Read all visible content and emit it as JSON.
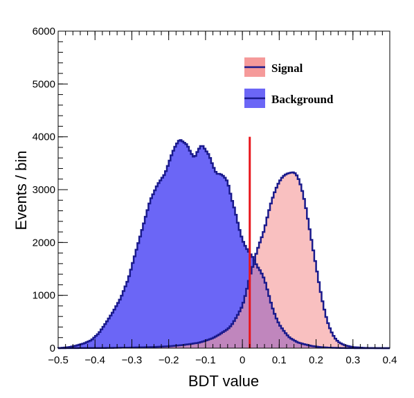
{
  "chart_data": {
    "type": "histogram",
    "xlabel": "BDT value",
    "ylabel": "Events / bin",
    "xlim": [
      -0.5,
      0.4
    ],
    "ylim": [
      0,
      6000
    ],
    "x_ticks": [
      -0.5,
      -0.4,
      -0.3,
      -0.2,
      -0.1,
      0,
      0.1,
      0.2,
      0.3,
      0.4
    ],
    "x_tick_labels": [
      "−0.5",
      "−0.4",
      "−0.3",
      "−0.2",
      "−0.1",
      "0",
      "0.1",
      "0.2",
      "0.3",
      "0.4"
    ],
    "y_ticks": [
      0,
      1000,
      2000,
      3000,
      4000,
      5000,
      6000
    ],
    "y_tick_labels": [
      "0",
      "1000",
      "2000",
      "3000",
      "4000",
      "5000",
      "6000"
    ],
    "grid": false,
    "legend_position": "top-right",
    "cut_line": {
      "x": 0.02,
      "y_max": 4000,
      "color": "#e8141a"
    },
    "series": [
      {
        "name": "Background",
        "fill": "#6b66f6",
        "line": "#1a1a8c",
        "points": [
          [
            -0.5,
            0
          ],
          [
            -0.47,
            20
          ],
          [
            -0.45,
            50
          ],
          [
            -0.43,
            90
          ],
          [
            -0.41,
            150
          ],
          [
            -0.39,
            280
          ],
          [
            -0.37,
            480
          ],
          [
            -0.35,
            700
          ],
          [
            -0.33,
            950
          ],
          [
            -0.31,
            1300
          ],
          [
            -0.29,
            1800
          ],
          [
            -0.27,
            2300
          ],
          [
            -0.25,
            2800
          ],
          [
            -0.23,
            3100
          ],
          [
            -0.21,
            3300
          ],
          [
            -0.2,
            3500
          ],
          [
            -0.19,
            3700
          ],
          [
            -0.18,
            3850
          ],
          [
            -0.17,
            3950
          ],
          [
            -0.16,
            3900
          ],
          [
            -0.15,
            3850
          ],
          [
            -0.14,
            3700
          ],
          [
            -0.13,
            3600
          ],
          [
            -0.12,
            3750
          ],
          [
            -0.11,
            3850
          ],
          [
            -0.1,
            3750
          ],
          [
            -0.09,
            3650
          ],
          [
            -0.08,
            3450
          ],
          [
            -0.07,
            3300
          ],
          [
            -0.06,
            3300
          ],
          [
            -0.05,
            3250
          ],
          [
            -0.04,
            3150
          ],
          [
            -0.03,
            2850
          ],
          [
            -0.02,
            2600
          ],
          [
            -0.01,
            2300
          ],
          [
            0.0,
            2050
          ],
          [
            0.01,
            1900
          ],
          [
            0.02,
            1800
          ],
          [
            0.03,
            1700
          ],
          [
            0.04,
            1550
          ],
          [
            0.05,
            1450
          ],
          [
            0.06,
            1300
          ],
          [
            0.07,
            1050
          ],
          [
            0.08,
            800
          ],
          [
            0.09,
            600
          ],
          [
            0.1,
            450
          ],
          [
            0.11,
            350
          ],
          [
            0.12,
            260
          ],
          [
            0.13,
            190
          ],
          [
            0.14,
            150
          ],
          [
            0.15,
            110
          ],
          [
            0.17,
            70
          ],
          [
            0.19,
            40
          ],
          [
            0.21,
            20
          ],
          [
            0.24,
            8
          ],
          [
            0.28,
            2
          ],
          [
            0.32,
            0
          ]
        ]
      },
      {
        "name": "Signal",
        "fill": "#f59a9a",
        "line": "#1a1a8c",
        "points": [
          [
            -0.5,
            0
          ],
          [
            -0.36,
            5
          ],
          [
            -0.3,
            12
          ],
          [
            -0.24,
            22
          ],
          [
            -0.2,
            35
          ],
          [
            -0.16,
            60
          ],
          [
            -0.12,
            100
          ],
          [
            -0.1,
            140
          ],
          [
            -0.08,
            190
          ],
          [
            -0.06,
            270
          ],
          [
            -0.04,
            360
          ],
          [
            -0.03,
            430
          ],
          [
            -0.02,
            540
          ],
          [
            -0.01,
            660
          ],
          [
            0.0,
            800
          ],
          [
            0.01,
            1050
          ],
          [
            0.02,
            1350
          ],
          [
            0.03,
            1600
          ],
          [
            0.04,
            1850
          ],
          [
            0.05,
            2050
          ],
          [
            0.06,
            2250
          ],
          [
            0.07,
            2550
          ],
          [
            0.08,
            2800
          ],
          [
            0.09,
            3000
          ],
          [
            0.1,
            3150
          ],
          [
            0.11,
            3250
          ],
          [
            0.12,
            3300
          ],
          [
            0.13,
            3320
          ],
          [
            0.14,
            3330
          ],
          [
            0.15,
            3250
          ],
          [
            0.16,
            3050
          ],
          [
            0.17,
            2750
          ],
          [
            0.18,
            2350
          ],
          [
            0.19,
            1950
          ],
          [
            0.2,
            1550
          ],
          [
            0.21,
            1150
          ],
          [
            0.22,
            800
          ],
          [
            0.23,
            520
          ],
          [
            0.24,
            330
          ],
          [
            0.25,
            200
          ],
          [
            0.26,
            120
          ],
          [
            0.27,
            80
          ],
          [
            0.28,
            50
          ],
          [
            0.3,
            20
          ],
          [
            0.33,
            6
          ],
          [
            0.37,
            1
          ],
          [
            0.4,
            0
          ]
        ]
      }
    ]
  }
}
